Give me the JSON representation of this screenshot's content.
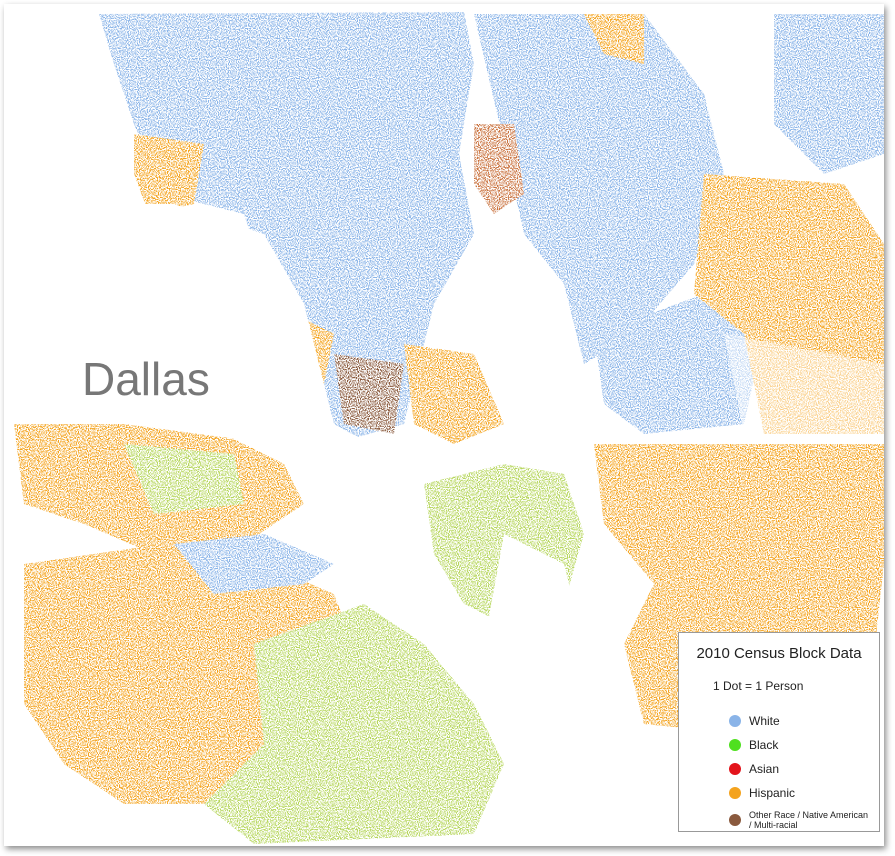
{
  "map": {
    "label": "Dallas"
  },
  "legend": {
    "title": "2010 Census Block Data",
    "subtitle": "1 Dot = 1 Person",
    "items": [
      {
        "label": "White",
        "color": "#8ab4e8"
      },
      {
        "label": "Black",
        "color": "#4fe01f"
      },
      {
        "label": "Asian",
        "color": "#e3141b"
      },
      {
        "label": "Hispanic",
        "color": "#f4a31e"
      },
      {
        "label": "Other Race / Native American / Multi-racial",
        "color": "#8a5a3e"
      }
    ]
  }
}
